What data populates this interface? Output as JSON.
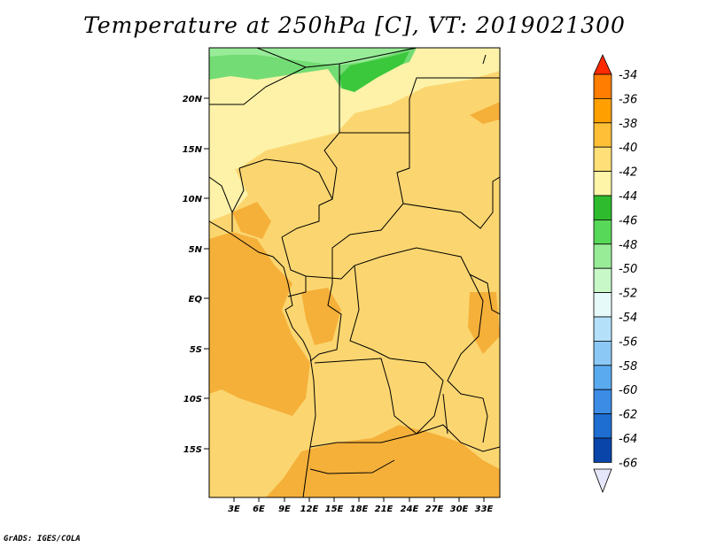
{
  "title": "Temperature at 250hPa [C], VT: 2019021300",
  "credit": "GrADS: IGES/COLA",
  "map": {
    "lat_labels": [
      "20N",
      "15N",
      "10N",
      "5N",
      "EQ",
      "5S",
      "10S",
      "15S"
    ],
    "lon_labels": [
      "3E",
      "6E",
      "9E",
      "12E",
      "15E",
      "18E",
      "21E",
      "24E",
      "27E",
      "30E",
      "33E"
    ]
  },
  "colorbar": {
    "labels": [
      "-34",
      "-36",
      "-38",
      "-40",
      "-42",
      "-44",
      "-46",
      "-48",
      "-50",
      "-52",
      "-54",
      "-56",
      "-58",
      "-60",
      "-62",
      "-64",
      "-66"
    ],
    "colors": [
      "#ff5a00",
      "#ff7d00",
      "#ffa000",
      "#ffc038",
      "#ffe078",
      "#fff5a8",
      "#2ebc2e",
      "#58d858",
      "#98ec98",
      "#c8f8c8",
      "#e6fafa",
      "#b4e0fa",
      "#8cc8f5",
      "#5aaaf0",
      "#3c8ce6",
      "#1e6ed2",
      "#0a46aa",
      "#081450"
    ]
  },
  "colors": {
    "warm_dark": "#f5b03a",
    "warm": "#fbd670",
    "warm_light": "#fdf2a8",
    "green_dark": "#3cc83c",
    "green": "#74dc74",
    "below_arrow": "#e6e6fa"
  }
}
